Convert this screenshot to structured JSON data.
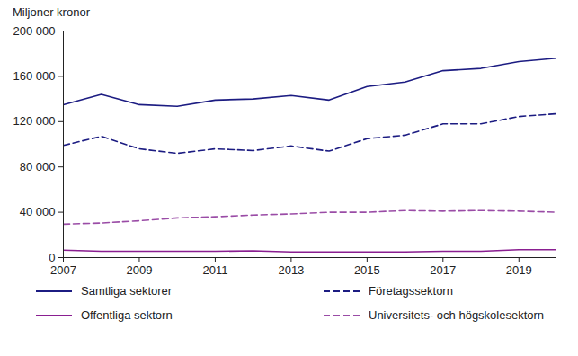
{
  "chart_data": {
    "type": "line",
    "y_label": "Miljoner kronor",
    "x": [
      2007,
      2008,
      2009,
      2010,
      2011,
      2012,
      2013,
      2014,
      2015,
      2016,
      2017,
      2018,
      2019,
      2020
    ],
    "series": [
      {
        "name": "Samtliga sektorer",
        "color": "#1c1c82",
        "line_style": "solid",
        "values": [
          135000,
          144000,
          135000,
          133500,
          139000,
          140000,
          143000,
          139000,
          151000,
          155000,
          165000,
          167000,
          173000,
          176000
        ]
      },
      {
        "name": "Företagssektorn",
        "color": "#1c1c82",
        "line_style": "dashed",
        "values": [
          99000,
          107000,
          96000,
          92000,
          96000,
          94500,
          98500,
          94000,
          105000,
          108000,
          118000,
          118000,
          124500,
          127000
        ]
      },
      {
        "name": "Offentliga sektorn",
        "color": "#8a1f91",
        "line_style": "solid",
        "values": [
          6500,
          5500,
          5500,
          5500,
          5500,
          6000,
          5000,
          5000,
          5000,
          5000,
          5500,
          5500,
          7000,
          7000
        ]
      },
      {
        "name": "Universitets- och högskolesektorn",
        "color": "#9a4ca6",
        "line_style": "dashed",
        "values": [
          29500,
          30500,
          32500,
          35000,
          36000,
          37500,
          38500,
          40000,
          40000,
          41500,
          41000,
          41500,
          41000,
          40000
        ]
      }
    ],
    "xlim": [
      2007,
      2020
    ],
    "xticks": [
      2007,
      2009,
      2011,
      2013,
      2015,
      2017,
      2019
    ],
    "ylim": [
      0,
      200000
    ],
    "yticks": [
      0,
      {
        "value": 40000,
        "label": "40 000"
      },
      {
        "value": 80000,
        "label": "80 000"
      },
      {
        "value": 120000,
        "label": "120 000"
      },
      {
        "value": 160000,
        "label": "160 000"
      },
      {
        "value": 200000,
        "label": "200 000"
      }
    ],
    "grid": false,
    "legend": "bottom"
  }
}
